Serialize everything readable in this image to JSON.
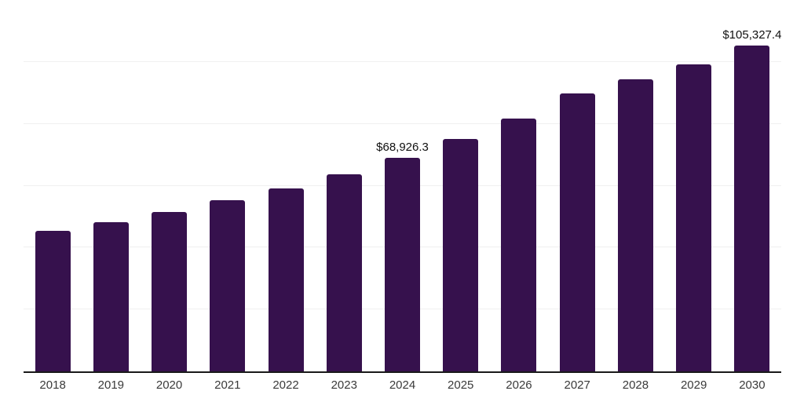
{
  "chart_data": {
    "type": "bar",
    "title": "",
    "xlabel": "",
    "ylabel": "",
    "categories": [
      "2018",
      "2019",
      "2020",
      "2021",
      "2022",
      "2023",
      "2024",
      "2025",
      "2026",
      "2027",
      "2028",
      "2029",
      "2030"
    ],
    "values": [
      45300,
      48100,
      51400,
      55200,
      59000,
      63800,
      68926.3,
      75000,
      81800,
      89700,
      94500,
      99300,
      105327.4
    ],
    "data_labels": [
      "",
      "",
      "",
      "",
      "",
      "",
      "$68,926.3",
      "",
      "",
      "",
      "",
      "",
      "$105,327.4"
    ],
    "ylim": [
      0,
      120000
    ],
    "gridline_values": [
      20000,
      40000,
      60000,
      80000,
      100000,
      120000
    ],
    "grid": "horizontal-only",
    "legend": "none",
    "y_tick_labels_visible": false,
    "colors": {
      "bar": "#36114D",
      "gridline": "#f0f0f0",
      "axis_line": "#1a1a1a",
      "tick_label": "#3a3a3a",
      "data_label": "#111111",
      "background": "#ffffff"
    }
  }
}
